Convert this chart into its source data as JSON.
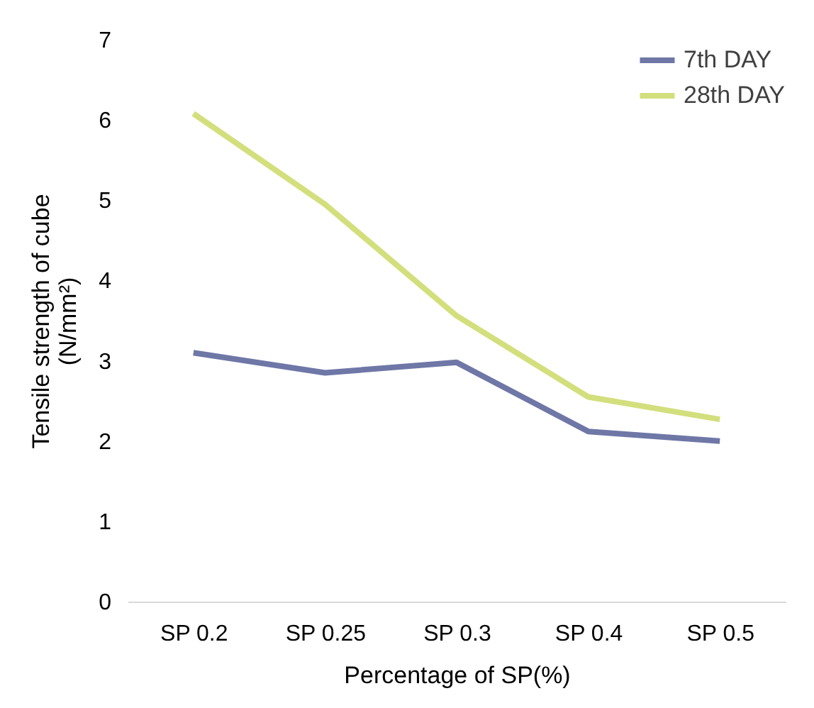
{
  "chart_data": {
    "type": "line",
    "xlabel": "Percentage of SP(%)",
    "ylabel": "Tensile strength of cube\n(N/mm²)",
    "categories": [
      "SP 0.2",
      "SP 0.25",
      "SP 0.3",
      "SP 0.4",
      "SP 0.5"
    ],
    "series": [
      {
        "name": "7th DAY",
        "color": "#6e77a6",
        "values": [
          3.1,
          2.85,
          2.98,
          2.12,
          2.0
        ]
      },
      {
        "name": "28th DAY",
        "color": "#d3df7c",
        "values": [
          6.08,
          4.95,
          3.56,
          2.55,
          2.27
        ]
      }
    ],
    "ylim": [
      0,
      7
    ],
    "yticks": [
      0,
      1,
      2,
      3,
      4,
      5,
      6,
      7
    ],
    "grid": false,
    "legend": "top right",
    "marker": "none",
    "line_style": "solid"
  }
}
